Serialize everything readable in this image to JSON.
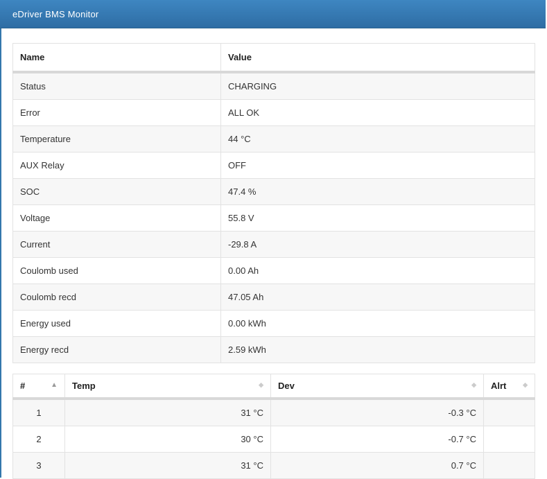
{
  "header": {
    "title": "eDriver BMS Monitor"
  },
  "colors": {
    "header_gradient_top": "#3e86c1",
    "header_gradient_bottom": "#2e6da4",
    "page_left_border": "#3377ac",
    "row_stripe": "#f7f7f7",
    "table_border": "#dddddd",
    "header_band": "#d8d8d8",
    "text": "#333333",
    "sort_icon_inactive": "#cccccc",
    "sort_icon_active": "#999999"
  },
  "status_table": {
    "columns": {
      "name": "Name",
      "value": "Value"
    },
    "rows": [
      {
        "name": "Status",
        "value": "CHARGING"
      },
      {
        "name": "Error",
        "value": "ALL OK"
      },
      {
        "name": "Temperature",
        "value": "44 °C"
      },
      {
        "name": "AUX Relay",
        "value": "OFF"
      },
      {
        "name": "SOC",
        "value": "47.4 %"
      },
      {
        "name": "Voltage",
        "value": "55.8 V"
      },
      {
        "name": "Current",
        "value": "-29.8 A"
      },
      {
        "name": "Coulomb used",
        "value": "0.00 Ah"
      },
      {
        "name": "Coulomb recd",
        "value": "47.05 Ah"
      },
      {
        "name": "Energy used",
        "value": "0.00 kWh"
      },
      {
        "name": "Energy recd",
        "value": "2.59 kWh"
      }
    ]
  },
  "cells_table": {
    "columns": {
      "num": "#",
      "temp": "Temp",
      "dev": "Dev",
      "alrt": "Alrt"
    },
    "sort_icons": {
      "asc": "▲",
      "both": "◆"
    },
    "sort_state": {
      "num": "ascending",
      "temp": "none",
      "dev": "none",
      "alrt": "none"
    },
    "rows": [
      {
        "num": "1",
        "temp": "31 °C",
        "dev": "-0.3 °C",
        "alrt": ""
      },
      {
        "num": "2",
        "temp": "30 °C",
        "dev": "-0.7 °C",
        "alrt": ""
      },
      {
        "num": "3",
        "temp": "31 °C",
        "dev": "0.7 °C",
        "alrt": ""
      }
    ]
  }
}
